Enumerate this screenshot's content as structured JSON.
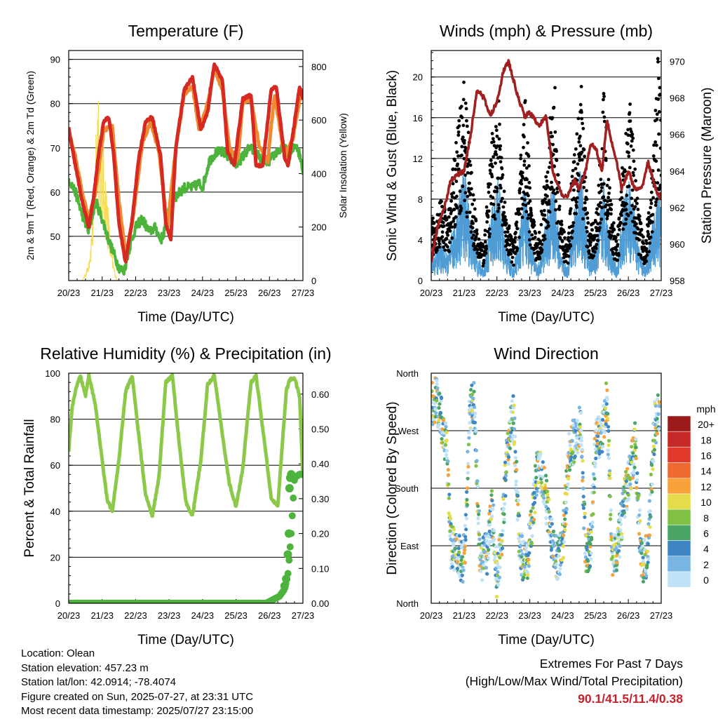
{
  "chart_data": [
    {
      "id": "temperature",
      "type": "line",
      "title": "Temperature (F)",
      "xlabel": "Time (Day/UTC)",
      "ylabel": "2m & 9m T (Red, Orange) & 2m Td (Green)",
      "y2label": "Solar Insolation (Yellow)",
      "x_ticks": [
        "20/23",
        "21/23",
        "22/23",
        "23/23",
        "24/23",
        "25/23",
        "26/23",
        "27/23"
      ],
      "xlim": [
        0,
        7
      ],
      "ylim": [
        40,
        92
      ],
      "y_ticks": [
        50,
        60,
        70,
        80,
        90
      ],
      "y2lim": [
        0,
        860
      ],
      "y2_ticks": [
        0,
        200,
        400,
        600,
        800
      ],
      "grid": true,
      "series": [
        {
          "name": "2m T",
          "color": "#d42a22",
          "x": [
            0,
            0.1,
            0.25,
            0.4,
            0.6,
            0.75,
            0.9,
            1.05,
            1.2,
            1.35,
            1.5,
            1.7,
            1.9,
            2.1,
            2.3,
            2.5,
            2.75,
            2.9,
            3.05,
            3.2,
            3.45,
            3.7,
            3.95,
            4.15,
            4.35,
            4.6,
            4.75,
            4.95,
            5.2,
            5.45,
            5.6,
            5.8,
            6.05,
            6.2,
            6.45,
            6.55,
            6.7,
            6.9,
            7
          ],
          "values": [
            74.5,
            70,
            64,
            58,
            52,
            59,
            69,
            76,
            77,
            68,
            53,
            44,
            54,
            68,
            76,
            77,
            68,
            53,
            49,
            70,
            83,
            86,
            74,
            78,
            89,
            85,
            69,
            66,
            81,
            82,
            66,
            66,
            83,
            84,
            68,
            66,
            73,
            84,
            81
          ]
        },
        {
          "name": "9m T",
          "color": "#f08a30",
          "x": [
            0,
            0.2,
            0.4,
            0.6,
            0.8,
            1.05,
            1.3,
            1.5,
            1.7,
            1.9,
            2.2,
            2.45,
            2.7,
            2.95,
            3.2,
            3.45,
            3.7,
            3.9,
            4.15,
            4.35,
            4.6,
            4.8,
            5.05,
            5.2,
            5.45,
            5.7,
            5.95,
            6.15,
            6.45,
            6.7,
            6.95,
            7
          ],
          "values": [
            74,
            68,
            60,
            54,
            60,
            74,
            75,
            58,
            46,
            53,
            71,
            76,
            69,
            52,
            70,
            82,
            84,
            74,
            80,
            88,
            83,
            70,
            67,
            80,
            81,
            70,
            67,
            82,
            68,
            72,
            83,
            81
          ]
        },
        {
          "name": "2m Td",
          "color": "#4db33d",
          "x": [
            0,
            0.2,
            0.4,
            0.6,
            0.8,
            1.0,
            1.2,
            1.35,
            1.5,
            1.65,
            1.8,
            2.0,
            2.2,
            2.4,
            2.6,
            2.75,
            2.85,
            3.0,
            3.2,
            3.45,
            3.7,
            3.9,
            4.0,
            4.2,
            4.4,
            4.6,
            4.8,
            5.0,
            5.2,
            5.4,
            5.6,
            5.8,
            6.0,
            6.2,
            6.45,
            6.6,
            6.8,
            6.95,
            7
          ],
          "values": [
            63,
            60,
            55,
            51,
            58,
            54,
            49,
            46,
            43,
            42,
            47,
            52,
            54,
            51,
            52,
            49,
            51,
            57,
            59,
            61,
            61,
            62,
            61,
            67,
            69,
            69,
            68,
            66,
            68,
            70,
            69,
            67,
            67,
            69,
            70,
            68,
            71,
            67,
            65
          ]
        },
        {
          "name": "Solar Insolation",
          "axis": "y2",
          "color": "#f5dc5a",
          "x": [
            0,
            0.2,
            0.4,
            0.55,
            0.65,
            0.75,
            0.82,
            0.88,
            0.95,
            1.05,
            1.15,
            1.25,
            1.35,
            1.45
          ],
          "values": [
            0,
            0,
            0,
            50,
            150,
            350,
            650,
            850,
            600,
            500,
            350,
            150,
            60,
            0
          ]
        }
      ]
    },
    {
      "id": "winds",
      "type": "scatter",
      "title": "Winds (mph) & Pressure (mb)",
      "xlabel": "Time (Day/UTC)",
      "ylabel": "Sonic Wind & Gust (Blue, Black)",
      "y2label": "Station Pressure (Maroon)",
      "x_ticks": [
        "20/23",
        "21/23",
        "22/23",
        "23/23",
        "24/23",
        "25/23",
        "26/23",
        "27/23"
      ],
      "xlim": [
        0,
        7
      ],
      "ylim": [
        0,
        22.6
      ],
      "y_ticks": [
        0,
        4,
        8,
        12,
        16,
        20
      ],
      "y2lim": [
        958,
        970.6
      ],
      "y2_ticks": [
        958,
        960,
        962,
        964,
        966,
        968,
        970
      ],
      "grid": true,
      "series": [
        {
          "name": "Sonic Wind",
          "color": "#4f9bd4",
          "x": [
            0,
            0.3,
            0.5,
            0.8,
            1.0,
            1.2,
            1.4,
            1.6,
            1.85,
            2.05,
            2.25,
            2.5,
            2.7,
            2.85,
            3.05,
            3.25,
            3.5,
            3.75,
            3.95,
            4.15,
            4.35,
            4.55,
            4.8,
            5.05,
            5.25,
            5.45,
            5.65,
            5.85,
            6.05,
            6.3,
            6.5,
            6.7,
            6.9,
            7
          ],
          "values": [
            2,
            3,
            2,
            6,
            9,
            5,
            2,
            1,
            6,
            8,
            3,
            1,
            4,
            8,
            3,
            1,
            5,
            8,
            2,
            1,
            6,
            9,
            2,
            3,
            8,
            3,
            1,
            6,
            8,
            3,
            1,
            4,
            7,
            6
          ]
        },
        {
          "name": "Gust",
          "color": "#000000",
          "x": [
            0,
            0.3,
            0.5,
            0.8,
            1.0,
            1.2,
            1.4,
            1.6,
            1.85,
            2.05,
            2.25,
            2.5,
            2.7,
            2.85,
            3.05,
            3.25,
            3.5,
            3.75,
            3.95,
            4.15,
            4.35,
            4.55,
            4.8,
            5.05,
            5.25,
            5.45,
            5.65,
            5.85,
            6.05,
            6.3,
            6.5,
            6.7,
            6.9,
            7
          ],
          "values": [
            5,
            7,
            5,
            13,
            17,
            10,
            4,
            3,
            12,
            15,
            6,
            3,
            9,
            16,
            6,
            3,
            10,
            17,
            5,
            3,
            12,
            17,
            4,
            6,
            16,
            7,
            3,
            11,
            15,
            6,
            3,
            8,
            19,
            14
          ]
        },
        {
          "name": "Station Pressure",
          "axis": "y2",
          "color": "#a01f1f",
          "x": [
            0,
            0.2,
            0.4,
            0.6,
            0.8,
            1.0,
            1.2,
            1.4,
            1.6,
            1.8,
            2.0,
            2.2,
            2.35,
            2.5,
            2.65,
            2.85,
            3.0,
            3.15,
            3.3,
            3.5,
            3.7,
            3.9,
            4.05,
            4.2,
            4.35,
            4.5,
            4.7,
            4.85,
            5.0,
            5.2,
            5.35,
            5.5,
            5.65,
            5.8,
            6.0,
            6.2,
            6.4,
            6.6,
            6.8,
            6.95,
            7
          ],
          "values": [
            959,
            961,
            962,
            963.5,
            963.8,
            964,
            966,
            968.5,
            968,
            967,
            967.8,
            969.5,
            970,
            969,
            968,
            967,
            967.2,
            966.8,
            966.5,
            967,
            964,
            963,
            962.5,
            962.8,
            963.5,
            963,
            964,
            965.5,
            965.3,
            964,
            966.8,
            965.5,
            964.5,
            963,
            964,
            963,
            963,
            964.5,
            963.2,
            962.5,
            962.8
          ]
        }
      ]
    },
    {
      "id": "humidity",
      "type": "line",
      "title": "Relative Humidity (%) & Precipitation (in)",
      "xlabel": "Time (Day/UTC)",
      "ylabel": "Percent & Total Rainfall",
      "x_ticks": [
        "20/23",
        "21/23",
        "22/23",
        "23/23",
        "24/23",
        "25/23",
        "26/23",
        "27/23"
      ],
      "xlim": [
        0,
        7
      ],
      "ylim": [
        0,
        100
      ],
      "y_ticks": [
        0,
        20,
        40,
        60,
        80,
        100
      ],
      "y2lim": [
        0,
        0.66
      ],
      "y2_ticks": [
        "0.00",
        "0.10",
        "0.20",
        "0.30",
        "0.40",
        "0.50",
        "0.60"
      ],
      "grid": true,
      "series": [
        {
          "name": "Relative Humidity",
          "color": "#8cc84a",
          "x": [
            0,
            0.1,
            0.25,
            0.35,
            0.5,
            0.6,
            0.8,
            1.0,
            1.15,
            1.3,
            1.5,
            1.7,
            1.9,
            2.1,
            2.3,
            2.5,
            2.7,
            2.9,
            3.1,
            3.3,
            3.5,
            3.7,
            3.95,
            4.15,
            4.35,
            4.55,
            4.8,
            5.0,
            5.2,
            5.45,
            5.6,
            5.85,
            6.05,
            6.25,
            6.5,
            6.6,
            6.75,
            6.9,
            7
          ],
          "values": [
            66,
            85,
            95,
            99,
            90,
            99,
            86,
            62,
            45,
            40,
            62,
            92,
            99,
            72,
            47,
            38,
            55,
            96,
            99,
            70,
            44,
            38,
            62,
            95,
            99,
            78,
            52,
            42,
            58,
            96,
            99,
            70,
            46,
            42,
            92,
            97,
            98,
            90,
            55
          ]
        },
        {
          "name": "Total Rainfall",
          "axis": "y2",
          "color": "#4db33d",
          "x": [
            0,
            1,
            2,
            3,
            4,
            5,
            5.9,
            6.1,
            6.3,
            6.45,
            6.55,
            6.6,
            6.65,
            6.75,
            6.9,
            7
          ],
          "values": [
            0,
            0,
            0,
            0,
            0,
            0,
            0,
            0.01,
            0.02,
            0.04,
            0.08,
            0.14,
            0.2,
            0.36,
            0.37,
            0.37
          ]
        }
      ]
    },
    {
      "id": "direction",
      "type": "scatter",
      "title": "Wind Direction",
      "xlabel": "Time (Day/UTC)",
      "ylabel": "Direction (Colored By Speed)",
      "x_ticks": [
        "20/23",
        "21/23",
        "22/23",
        "23/23",
        "24/23",
        "25/23",
        "26/23",
        "27/23"
      ],
      "xlim": [
        0,
        7
      ],
      "y_ticks": [
        "North",
        "East",
        "South",
        "West",
        "North"
      ],
      "ylim": [
        0,
        360
      ],
      "grid": true,
      "legend": {
        "title": "mph",
        "labels": [
          "20+",
          "18",
          "16",
          "14",
          "12",
          "10",
          "8",
          "6",
          "4",
          "2",
          "0"
        ],
        "colors": [
          "#9b1b1b",
          "#c62828",
          "#e0392b",
          "#f06a2f",
          "#f9a23c",
          "#e4dc4a",
          "#7fc045",
          "#4aa564",
          "#3f86c4",
          "#79b5e3",
          "#bfe2f6"
        ],
        "placement": "right"
      },
      "series": [
        {
          "name": "Direction",
          "x": [
            0,
            0.15,
            0.3,
            0.45,
            0.6,
            0.8,
            0.95,
            1.05,
            1.15,
            1.3,
            1.5,
            1.7,
            1.85,
            2.0,
            2.15,
            2.3,
            2.5,
            2.7,
            2.9,
            3.05,
            3.25,
            3.45,
            3.7,
            3.85,
            4.0,
            4.2,
            4.4,
            4.55,
            4.7,
            4.85,
            5.0,
            5.2,
            5.35,
            5.5,
            5.7,
            5.9,
            6.05,
            6.2,
            6.4,
            6.6,
            6.8,
            6.95
          ],
          "values": [
            310,
            320,
            290,
            250,
            90,
            80,
            60,
            100,
            290,
            320,
            60,
            80,
            150,
            40,
            100,
            230,
            300,
            80,
            60,
            120,
            220,
            180,
            90,
            70,
            90,
            240,
            260,
            280,
            80,
            90,
            250,
            270,
            320,
            70,
            90,
            170,
            200,
            250,
            60,
            80,
            280,
            300
          ]
        }
      ]
    }
  ],
  "info": {
    "location": "Location: Olean",
    "elevation": "Station elevation: 457.23 m",
    "latlon": "Station lat/lon: 42.0914; -78.4074",
    "created": "Figure created on Sun, 2025-07-27, at 23:31 UTC",
    "recent": "Most recent data timestamp: 2025/07/27 23:15:00"
  },
  "extremes": {
    "title": "Extremes For Past 7 Days",
    "subtitle": "(High/Low/Max Wind/Total Precipitation)",
    "values": "90.1/41.5/11.4/0.38"
  }
}
